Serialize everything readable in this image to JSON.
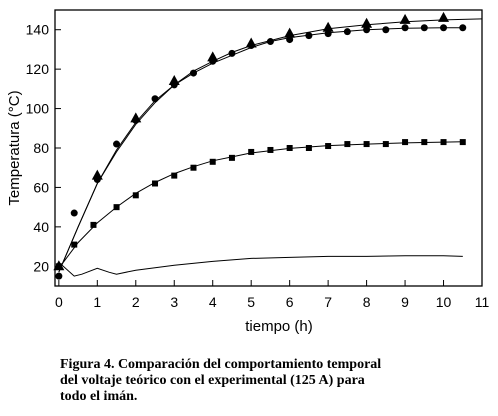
{
  "chart_data": {
    "type": "line",
    "title": "",
    "xlabel": "tiempo (h)",
    "ylabel": "Temperatura (°C)",
    "xlim": [
      -0.1,
      11
    ],
    "ylim": [
      10,
      150
    ],
    "xticks": [
      0,
      1,
      2,
      3,
      4,
      5,
      6,
      7,
      8,
      9,
      10,
      11
    ],
    "yticks": [
      20,
      40,
      60,
      80,
      100,
      120,
      140
    ],
    "grid": false,
    "legend": "none",
    "series": [
      {
        "marker": "triangle",
        "points": [
          [
            0,
            20
          ],
          [
            1,
            66
          ],
          [
            2,
            95
          ],
          [
            3,
            114
          ],
          [
            4,
            126
          ],
          [
            5,
            133
          ],
          [
            6,
            138
          ],
          [
            7,
            141
          ],
          [
            8,
            143
          ],
          [
            9,
            145
          ],
          [
            10,
            146
          ]
        ],
        "fit_curve": [
          [
            0,
            17
          ],
          [
            0.5,
            40
          ],
          [
            1,
            62
          ],
          [
            1.5,
            78
          ],
          [
            2,
            92
          ],
          [
            2.5,
            103
          ],
          [
            3,
            112
          ],
          [
            3.5,
            119
          ],
          [
            4,
            124
          ],
          [
            4.5,
            128.5
          ],
          [
            5,
            132
          ],
          [
            6,
            137
          ],
          [
            7,
            140.5
          ],
          [
            8,
            142.5
          ],
          [
            9,
            144
          ],
          [
            10,
            145
          ],
          [
            11,
            145.5
          ]
        ]
      },
      {
        "marker": "circle",
        "points": [
          [
            0,
            15
          ],
          [
            0.4,
            47
          ],
          [
            1,
            64
          ],
          [
            1.5,
            82
          ],
          [
            2,
            94
          ],
          [
            2.5,
            105
          ],
          [
            3,
            112
          ],
          [
            3.5,
            118
          ],
          [
            4,
            124
          ],
          [
            4.5,
            128
          ],
          [
            5,
            132
          ],
          [
            5.5,
            134
          ],
          [
            6,
            135
          ],
          [
            6.5,
            137
          ],
          [
            7,
            138
          ],
          [
            7.5,
            139
          ],
          [
            8,
            140
          ],
          [
            8.5,
            140
          ],
          [
            9,
            141
          ],
          [
            9.5,
            141
          ],
          [
            10,
            141
          ],
          [
            10.5,
            141
          ]
        ],
        "fit_curve": [
          [
            0,
            17
          ],
          [
            0.5,
            40
          ],
          [
            1,
            62
          ],
          [
            1.5,
            79
          ],
          [
            2,
            93
          ],
          [
            2.5,
            104
          ],
          [
            3,
            112
          ],
          [
            3.5,
            118
          ],
          [
            4,
            123
          ],
          [
            4.5,
            127
          ],
          [
            5,
            131
          ],
          [
            5.5,
            134
          ],
          [
            6,
            136
          ],
          [
            7,
            138.5
          ],
          [
            8,
            140
          ],
          [
            9,
            140.7
          ],
          [
            10,
            141
          ],
          [
            10.5,
            141
          ]
        ]
      },
      {
        "marker": "square",
        "points": [
          [
            0,
            20
          ],
          [
            0.4,
            31
          ],
          [
            0.9,
            41
          ],
          [
            1.5,
            50
          ],
          [
            2,
            56
          ],
          [
            2.5,
            62
          ],
          [
            3,
            66
          ],
          [
            3.5,
            70
          ],
          [
            4,
            73
          ],
          [
            4.5,
            75
          ],
          [
            5,
            78
          ],
          [
            5.5,
            79
          ],
          [
            6,
            80
          ],
          [
            6.5,
            80
          ],
          [
            7,
            81
          ],
          [
            7.5,
            82
          ],
          [
            8,
            82
          ],
          [
            8.5,
            82
          ],
          [
            9,
            83
          ],
          [
            9.5,
            83
          ],
          [
            10,
            83
          ],
          [
            10.5,
            83
          ]
        ],
        "fit_curve": [
          [
            0,
            19
          ],
          [
            0.5,
            32
          ],
          [
            1,
            42
          ],
          [
            1.5,
            50
          ],
          [
            2,
            57
          ],
          [
            2.5,
            62.5
          ],
          [
            3,
            67
          ],
          [
            3.5,
            70.5
          ],
          [
            4,
            73.5
          ],
          [
            4.5,
            75.5
          ],
          [
            5,
            77.5
          ],
          [
            6,
            79.8
          ],
          [
            7,
            81.2
          ],
          [
            8,
            82
          ],
          [
            9,
            82.6
          ],
          [
            10,
            83
          ],
          [
            10.5,
            83.2
          ]
        ]
      },
      {
        "marker": "none",
        "points": [
          [
            0,
            22
          ],
          [
            0.4,
            15
          ],
          [
            0.6,
            16
          ],
          [
            1,
            19
          ],
          [
            1.3,
            17
          ],
          [
            1.5,
            16
          ],
          [
            2,
            18
          ],
          [
            3,
            20.5
          ],
          [
            4,
            22.5
          ],
          [
            5,
            24
          ],
          [
            6,
            24.5
          ],
          [
            7,
            25
          ],
          [
            8,
            25
          ],
          [
            9,
            25.3
          ],
          [
            10,
            25.3
          ],
          [
            10.5,
            25
          ]
        ]
      }
    ]
  },
  "caption": "Figura 4. Comparación del comportamiento temporal\ndel voltaje teórico con el experimental (125 A) para\ntodo el imán."
}
